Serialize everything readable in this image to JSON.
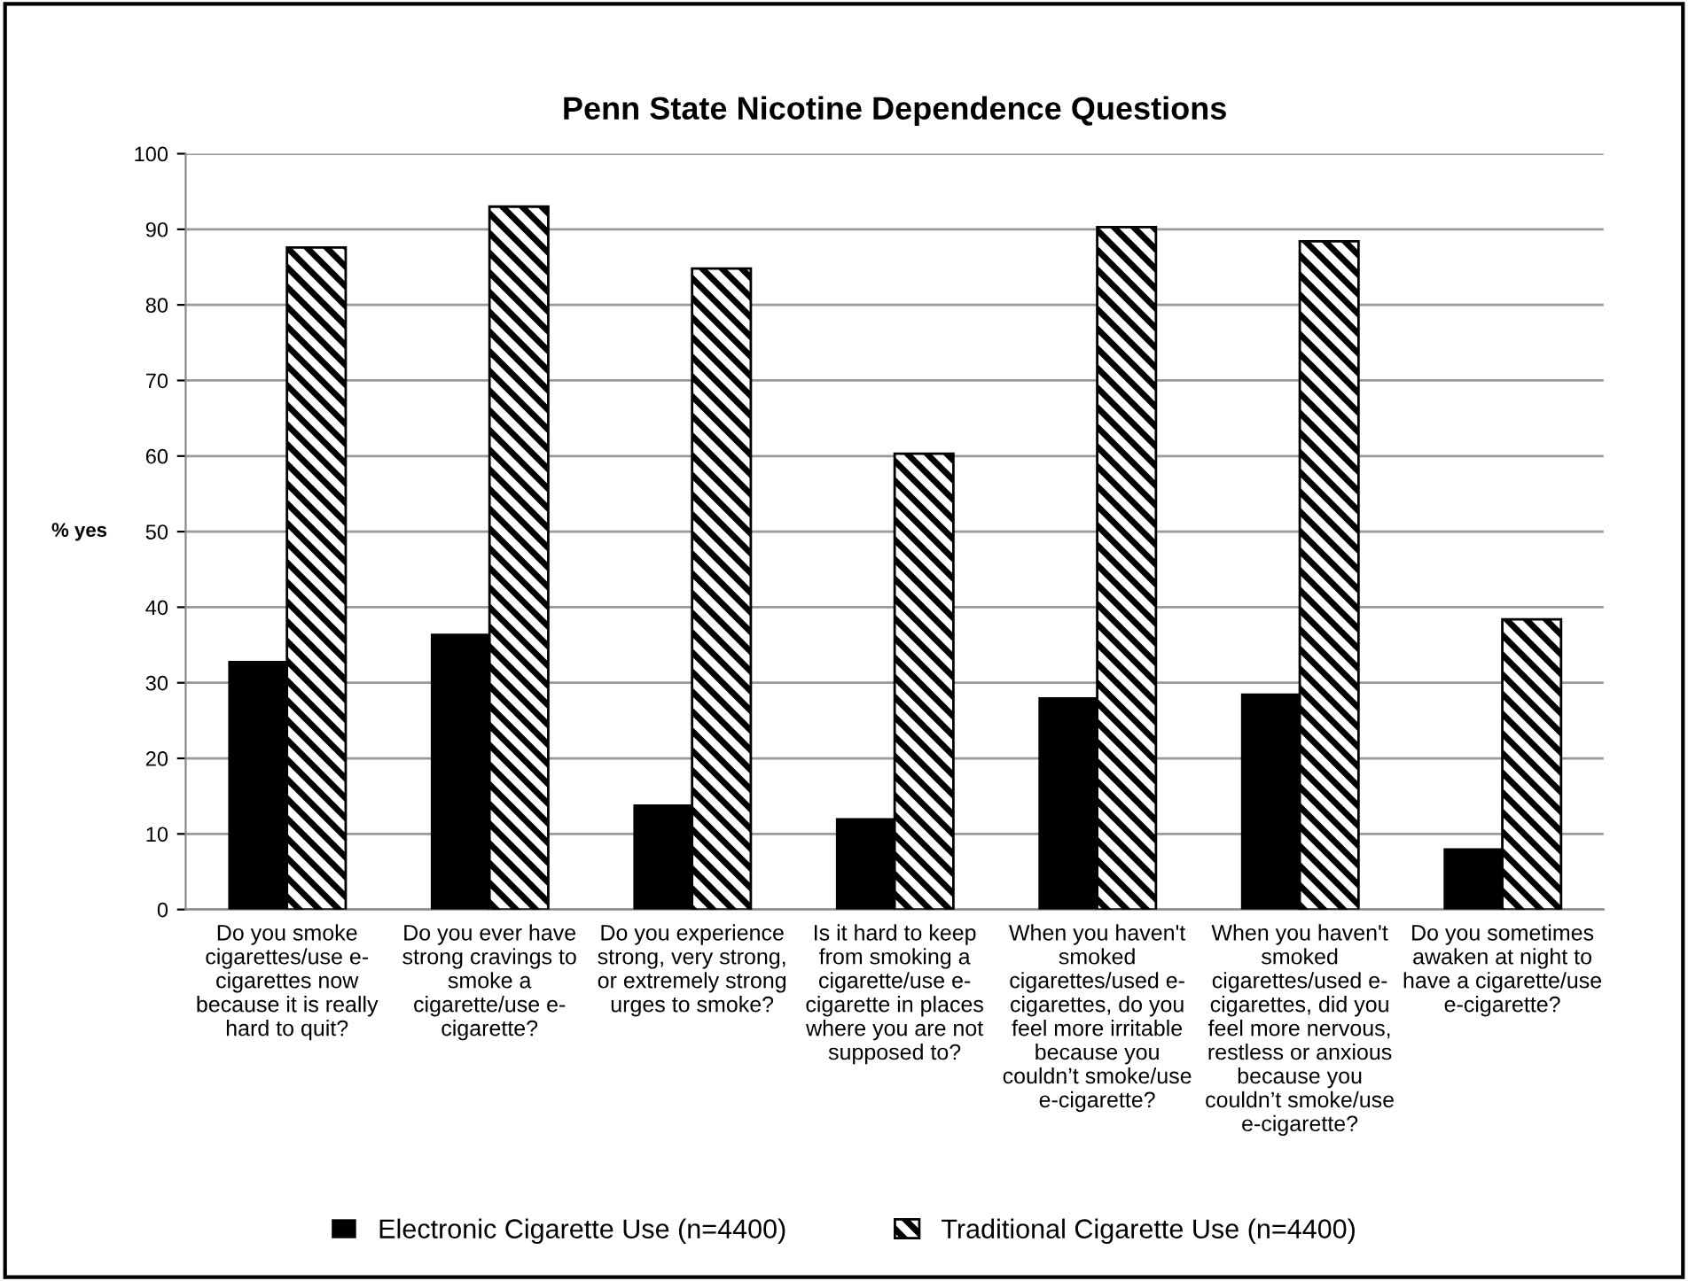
{
  "chart_data": {
    "type": "bar",
    "title": "Penn State Nicotine Dependence Questions",
    "ylabel": "% yes",
    "categories": [
      "Do you smoke\ncigarettes/use e-\ncigarettes now\nbecause it is really\nhard to quit?",
      "Do you ever have\nstrong cravings to\nsmoke a\ncigarette/use e-\ncigarette?",
      "Do you experience\nstrong, very strong,\nor extremely strong\nurges to smoke?",
      "Is it hard to keep\nfrom smoking a\ncigarette/use e-\ncigarette in places\nwhere you are not\nsupposed to?",
      "When you haven't\nsmoked\ncigarettes/used e-\ncigarettes, do you\nfeel more irritable\nbecause you\ncouldn’t smoke/use\ne-cigarette?",
      "When you haven't\nsmoked\ncigarettes/used e-\ncigarettes, did you\nfeel more nervous,\nrestless or anxious\nbecause you\ncouldn’t smoke/use\ne-cigarette?",
      "Do you sometimes\nawaken at night to\nhave a cigarette/use\ne-cigarette?"
    ],
    "series": [
      {
        "name": "Electronic Cigarette Use (n=4400)",
        "color": "#000000",
        "values": [
          32.9,
          36.5,
          13.9,
          12.1,
          28.1,
          28.6,
          8.1
        ]
      },
      {
        "name": "Traditional Cigarette Use (n=4400)",
        "color": "#000000",
        "values": [
          87.6,
          93.0,
          84.8,
          60.3,
          90.3,
          88.4,
          38.4
        ]
      }
    ],
    "ylim": [
      0,
      100
    ],
    "yticks": [
      0,
      10,
      20,
      30,
      40,
      50,
      60,
      70,
      80,
      90,
      100
    ],
    "grid": "y",
    "legend": "bottom"
  }
}
